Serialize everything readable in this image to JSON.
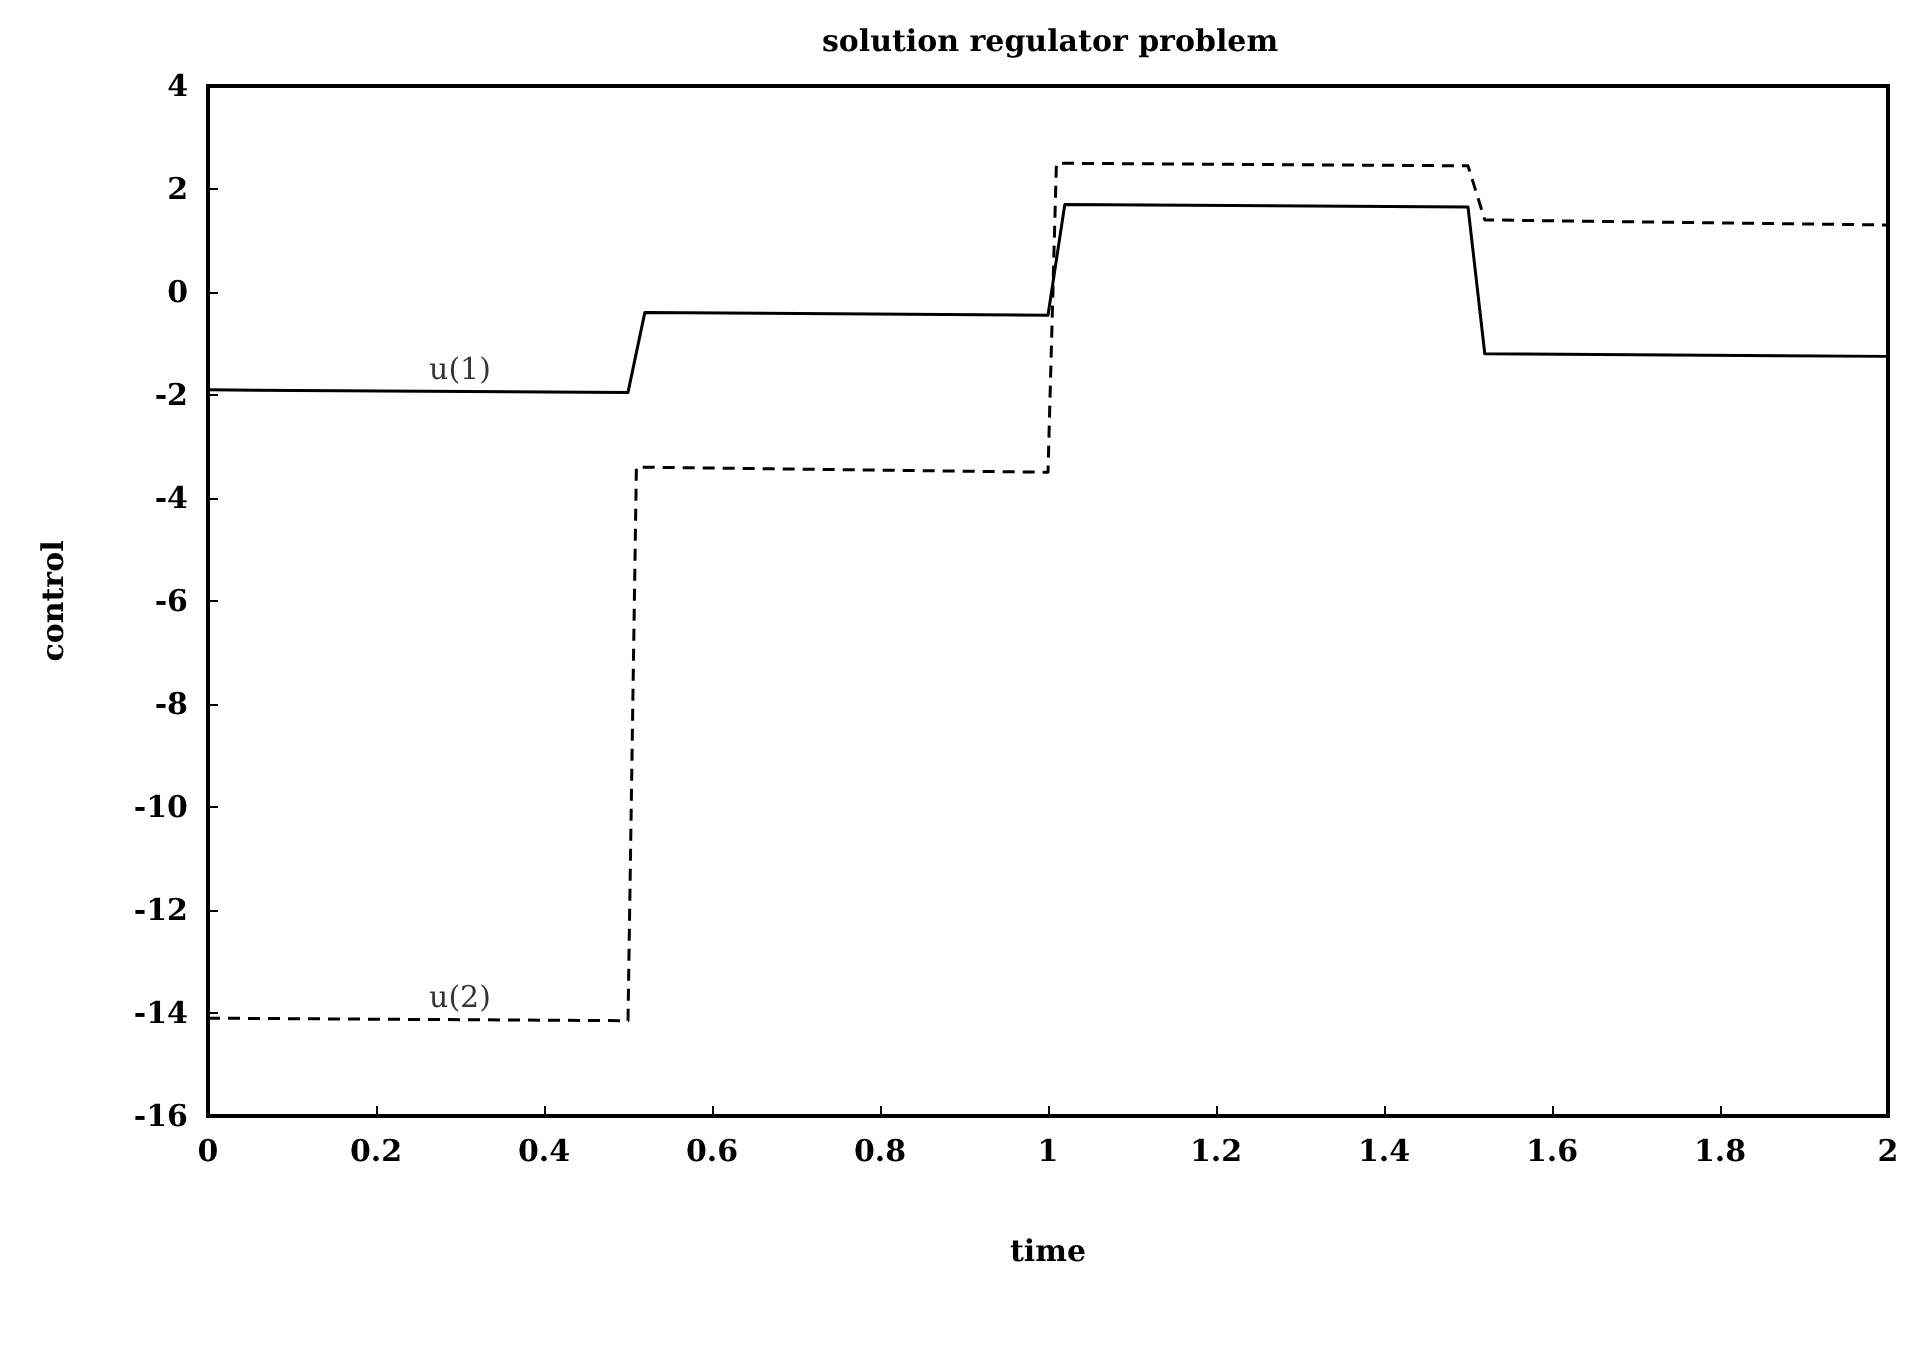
{
  "chart_data": {
    "type": "line",
    "title": "solution regulator problem",
    "xlabel": "time",
    "ylabel": "control",
    "xlim": [
      0,
      2
    ],
    "xticks": [
      0,
      0.2,
      0.4,
      0.6,
      0.8,
      1,
      1.2,
      1.4,
      1.6,
      1.8,
      2
    ],
    "ylim": [
      -16,
      4
    ],
    "yticks": [
      -16,
      -14,
      -12,
      -10,
      -8,
      -6,
      -4,
      -2,
      0,
      2,
      4
    ],
    "grid": false,
    "marker": "none",
    "series": [
      {
        "x": [
          0,
          0.5,
          0.52,
          1.0,
          1.02,
          1.5,
          1.52,
          2
        ],
        "values": [
          -1.9,
          -1.95,
          -0.4,
          -0.45,
          1.7,
          1.65,
          -1.2,
          -1.25
        ],
        "color": "#000000",
        "line_style": "solid"
      },
      {
        "x": [
          0,
          0.5,
          0.51,
          1.0,
          1.01,
          1.5,
          1.52,
          2
        ],
        "values": [
          -14.1,
          -14.15,
          -3.4,
          -3.5,
          2.5,
          2.45,
          1.4,
          1.3
        ],
        "color": "#000000",
        "line_style": "dashed"
      }
    ],
    "annotations": [
      {
        "text": "u(1)",
        "x": 0.3,
        "y": -1.9
      },
      {
        "text": "u(2)",
        "x": 0.3,
        "y": -14.1
      }
    ]
  }
}
